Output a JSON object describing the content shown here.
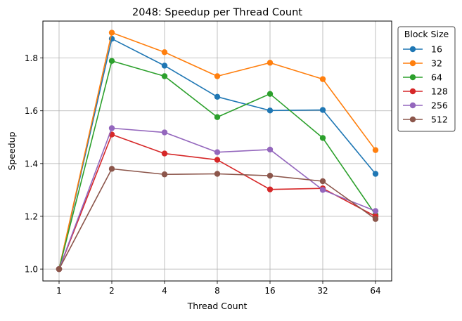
{
  "chart_data": {
    "type": "line",
    "title": "2048: Speedup per Thread Count",
    "xlabel": "Thread Count",
    "ylabel": "Speedup",
    "x": [
      "1",
      "2",
      "4",
      "8",
      "16",
      "32",
      "64"
    ],
    "ylim": [
      0.955,
      1.94
    ],
    "yticks": [
      "1.0",
      "1.2",
      "1.4",
      "1.6",
      "1.8"
    ],
    "yticks_values": [
      1.0,
      1.2,
      1.4,
      1.6,
      1.8
    ],
    "grid": true,
    "legend": {
      "title": "Block Size",
      "placement": "outside-right-top"
    },
    "series": [
      {
        "name": "16",
        "color": "#1f77b4",
        "values": [
          1.0,
          1.873,
          1.771,
          1.653,
          1.601,
          1.603,
          1.361
        ]
      },
      {
        "name": "32",
        "color": "#ff7f0e",
        "values": [
          1.0,
          1.896,
          1.822,
          1.731,
          1.782,
          1.72,
          1.451
        ]
      },
      {
        "name": "64",
        "color": "#2ca02c",
        "values": [
          1.0,
          1.789,
          1.731,
          1.576,
          1.664,
          1.497,
          1.206
        ]
      },
      {
        "name": "128",
        "color": "#d62728",
        "values": [
          1.0,
          1.51,
          1.438,
          1.414,
          1.302,
          1.306,
          1.2
        ]
      },
      {
        "name": "256",
        "color": "#9467bd",
        "values": [
          1.0,
          1.534,
          1.518,
          1.443,
          1.453,
          1.3,
          1.22
        ]
      },
      {
        "name": "512",
        "color": "#8c564b",
        "values": [
          1.0,
          1.38,
          1.359,
          1.361,
          1.354,
          1.333,
          1.19
        ]
      }
    ]
  }
}
